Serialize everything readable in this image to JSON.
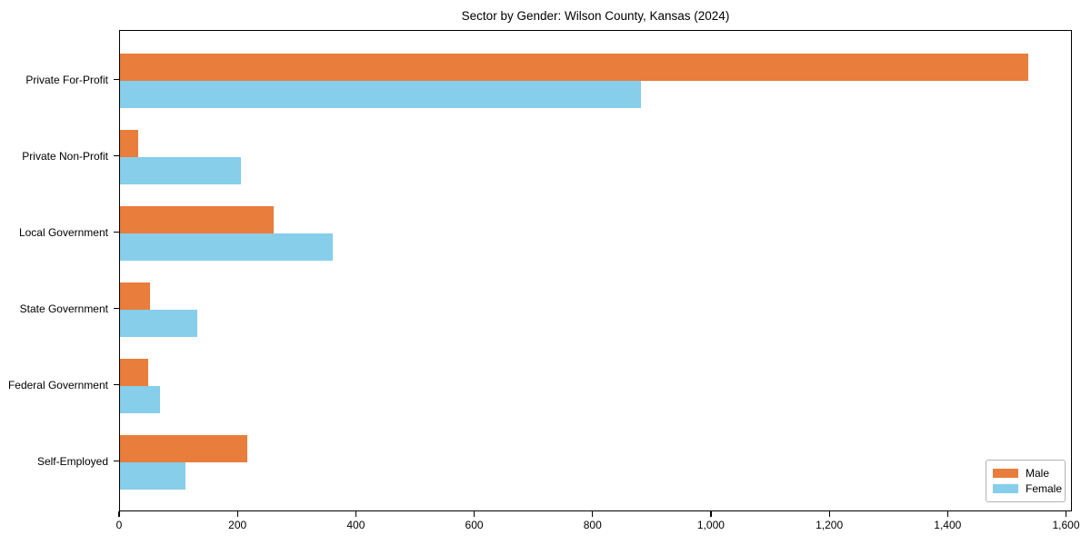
{
  "title": "Sector by Gender: Wilson County, Kansas (2024)",
  "colors": {
    "male": "#e87d3c",
    "female": "#87ceeb",
    "spine": "#000000",
    "text": "#000000",
    "legend_border": "#b3b3b3"
  },
  "chart_data": {
    "type": "bar",
    "orientation": "horizontal",
    "title": "Sector by Gender: Wilson County, Kansas (2024)",
    "categories": [
      "Private For-Profit",
      "Private Non-Profit",
      "Local Government",
      "State Government",
      "Federal Government",
      "Self-Employed"
    ],
    "series": [
      {
        "name": "Male",
        "color": "#e87d3c",
        "values": [
          1535,
          30,
          260,
          50,
          48,
          215
        ]
      },
      {
        "name": "Female",
        "color": "#87ceeb",
        "values": [
          880,
          205,
          360,
          130,
          68,
          110
        ]
      }
    ],
    "xlabel": "",
    "ylabel": "",
    "xlim": [
      0,
      1610
    ],
    "xticks": [
      0,
      200,
      400,
      600,
      800,
      1000,
      1200,
      1400,
      1600
    ],
    "xtick_labels": [
      "0",
      "200",
      "400",
      "600",
      "800",
      "1,000",
      "1,200",
      "1,400",
      "1,600"
    ],
    "grid": false,
    "legend": {
      "position": "lower right",
      "entries": [
        "Male",
        "Female"
      ]
    }
  }
}
